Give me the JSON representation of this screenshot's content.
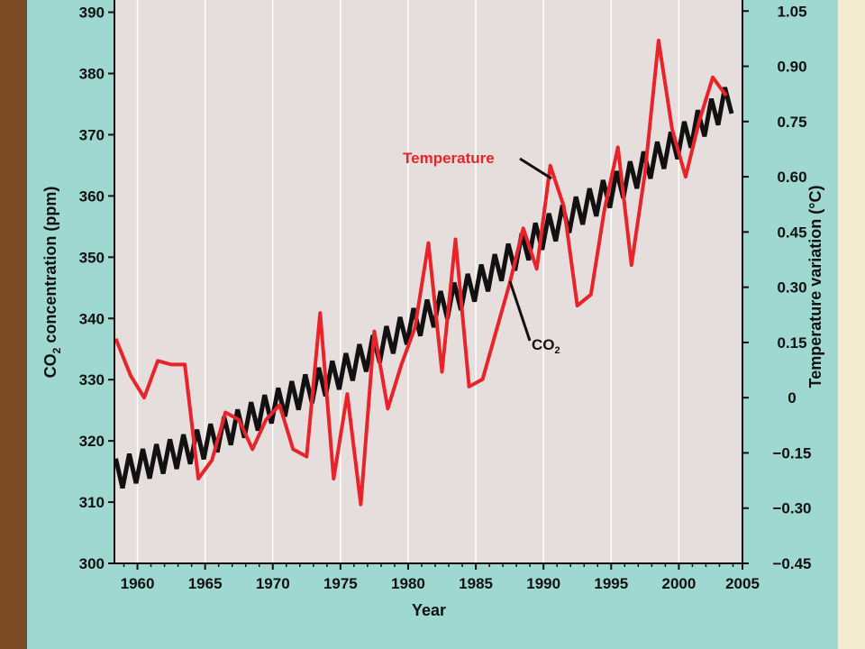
{
  "chart_data": {
    "type": "line",
    "xlabel": "Year",
    "ylabel_left": {
      "pre": "CO",
      "sub": "2",
      "post": " concentration (ppm)"
    },
    "ylabel_right": "Temperature variation (°C)",
    "xlim": [
      1958.3,
      2004.7
    ],
    "ylim_left": [
      300,
      392
    ],
    "ylim_right": [
      -0.45,
      1.08
    ],
    "x_ticks": [
      1960,
      1965,
      1970,
      1975,
      1980,
      1985,
      1990,
      1995,
      2000,
      2005
    ],
    "x_tick_labels": [
      "1960",
      "1965",
      "1970",
      "1975",
      "1980",
      "1985",
      "1990",
      "1995",
      "2000",
      "2005"
    ],
    "y_left_ticks": [
      300,
      310,
      320,
      330,
      340,
      350,
      360,
      370,
      380,
      390
    ],
    "y_left_tick_labels": [
      "300",
      "310",
      "320",
      "330",
      "340",
      "350",
      "360",
      "370",
      "380",
      "390"
    ],
    "y_right_ticks": [
      -0.45,
      -0.3,
      -0.15,
      0,
      0.15,
      0.3,
      0.45,
      0.6,
      0.75,
      0.9,
      1.05
    ],
    "y_right_tick_labels": [
      "−0.45",
      "−0.30",
      "−0.15",
      "0",
      "0.15",
      "0.30",
      "0.45",
      "0.60",
      "0.75",
      "0.90",
      "1.05"
    ],
    "grid": "vertical lines at each x tick",
    "colors": {
      "plot_bg": "#e6dedc",
      "panel_bg": "#9ed8d0",
      "temperature": "#e8232a",
      "co2": "#111111",
      "grid": "#ffffff",
      "slide_border_left": "#7a4a24",
      "slide_border_right": "#f2ebcf"
    },
    "annotations": {
      "temperature": {
        "text": "Temperature"
      },
      "co2": {
        "pre": "CO",
        "sub": "2"
      }
    },
    "series": [
      {
        "name": "Temperature",
        "axis": "right",
        "x": [
          1958.4,
          1959.5,
          1960.5,
          1961.5,
          1962.5,
          1963.5,
          1964.5,
          1965.5,
          1966.5,
          1967.5,
          1968.5,
          1969.5,
          1970.5,
          1971.5,
          1972.5,
          1973.5,
          1974.5,
          1975.5,
          1976.5,
          1977.5,
          1978.5,
          1979.5,
          1980.5,
          1981.5,
          1982.5,
          1983.5,
          1984.5,
          1985.5,
          1986.5,
          1987.5,
          1988.5,
          1989.5,
          1990.5,
          1991.5,
          1992.5,
          1993.5,
          1994.5,
          1995.5,
          1996.5,
          1997.5,
          1998.5,
          1999.5,
          2000.5,
          2001.5,
          2002.5,
          2003.5
        ],
        "values": [
          0.16,
          0.06,
          0.0,
          0.1,
          0.09,
          0.09,
          -0.22,
          -0.17,
          -0.04,
          -0.06,
          -0.14,
          -0.06,
          -0.02,
          -0.14,
          -0.16,
          0.23,
          -0.22,
          0.01,
          -0.29,
          0.18,
          -0.03,
          0.09,
          0.19,
          0.42,
          0.07,
          0.43,
          0.03,
          0.05,
          0.18,
          0.31,
          0.46,
          0.35,
          0.63,
          0.52,
          0.25,
          0.28,
          0.51,
          0.68,
          0.36,
          0.61,
          0.97,
          0.73,
          0.6,
          0.75,
          0.87,
          0.82
        ]
      },
      {
        "name": "CO₂",
        "axis": "left",
        "x_start": 1958.4,
        "x_end": 2004.3,
        "trend": [
          [
            1958.4,
            314.5
          ],
          [
            1965,
            319.7
          ],
          [
            1970,
            325.6
          ],
          [
            1975,
            331.1
          ],
          [
            1980,
            338.5
          ],
          [
            1985,
            345.5
          ],
          [
            1990,
            354.0
          ],
          [
            1995,
            360.8
          ],
          [
            2000,
            368.8
          ],
          [
            2004.3,
            376.8
          ]
        ],
        "seasonal_amplitude_ppm": 2.6,
        "cycles_per_year": 1
      }
    ]
  }
}
